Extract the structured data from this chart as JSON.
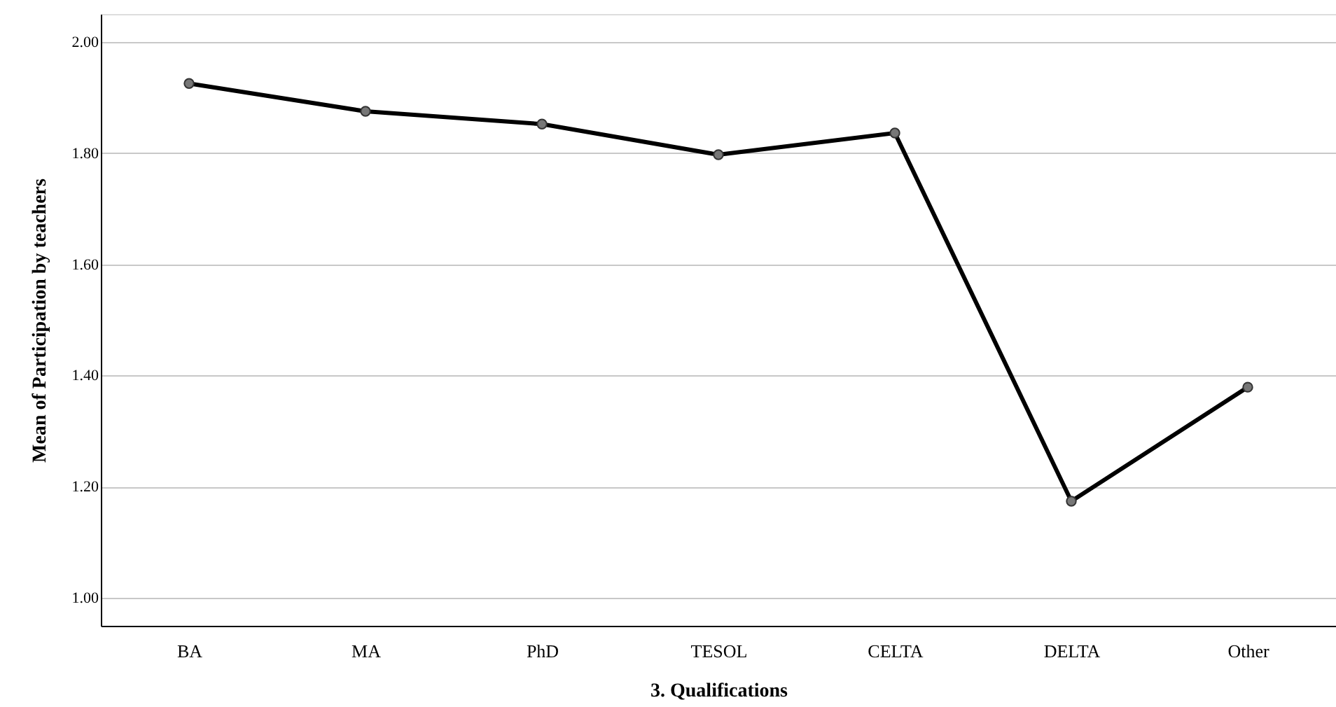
{
  "chart_data": {
    "type": "line",
    "xlabel": "3. Qualifications",
    "ylabel": "Mean of Participation by teachers",
    "categories": [
      "BA",
      "MA",
      "PhD",
      "TESOL",
      "CELTA",
      "DELTA",
      "Other"
    ],
    "series": [
      {
        "color": "#000000",
        "values": [
          1.925,
          1.875,
          1.852,
          1.797,
          1.836,
          1.174,
          1.379
        ]
      }
    ],
    "ylim": [
      0.95,
      2.05
    ],
    "yticks": [
      {
        "value": 1.0,
        "label": "1.00"
      },
      {
        "value": 1.2,
        "label": "1.20"
      },
      {
        "value": 1.4,
        "label": "1.40"
      },
      {
        "value": 1.6,
        "label": "1.60"
      },
      {
        "value": 1.8,
        "label": "1.80"
      },
      {
        "value": 2.0,
        "label": "2.00"
      }
    ],
    "grid": "y",
    "marker": "circle",
    "line_style": "solid"
  }
}
